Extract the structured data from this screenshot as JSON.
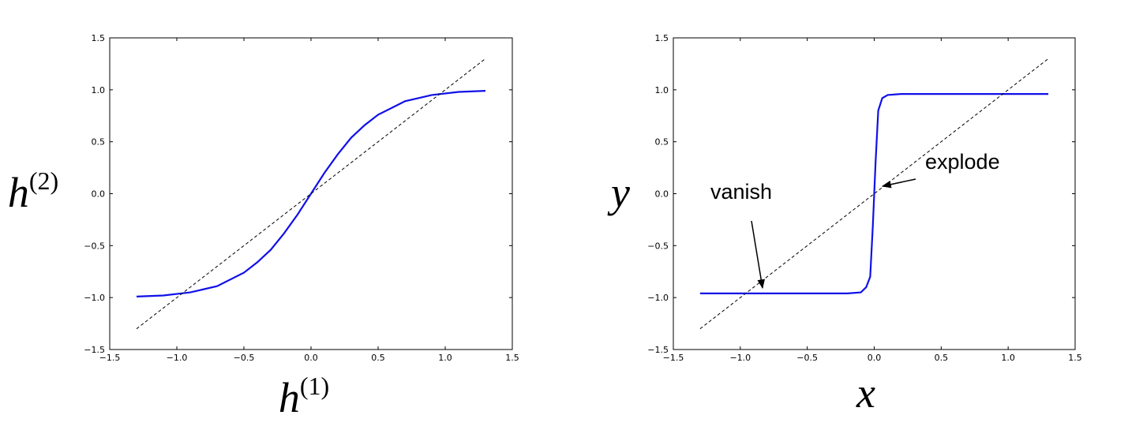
{
  "chart_data": [
    {
      "type": "line",
      "xlabel": [
        "h",
        "(1)"
      ],
      "ylabel": [
        "h",
        "(2)"
      ],
      "xlim": [
        -1.5,
        1.5
      ],
      "ylim": [
        -1.5,
        1.5
      ],
      "xticks": [
        {
          "value": -1.5,
          "label": "−1.5"
        },
        {
          "value": -1.0,
          "label": "−1.0"
        },
        {
          "value": -0.5,
          "label": "−0.5"
        },
        {
          "value": 0,
          "label": "0.0"
        },
        0.5,
        {
          "value": 1.0,
          "label": "1.0"
        },
        1.5
      ],
      "yticks": [
        {
          "value": -1.5,
          "label": "−1.5"
        },
        {
          "value": -1.0,
          "label": "−1.0"
        },
        {
          "value": -0.5,
          "label": "−0.5"
        },
        {
          "value": 0,
          "label": "0.0"
        },
        0.5,
        {
          "value": 1.0,
          "label": "1.0"
        },
        1.5
      ],
      "series": [
        {
          "color": "#1010e8",
          "style": "solid",
          "x": [
            -1.3,
            -1.1,
            -0.9,
            -0.7,
            -0.5,
            -0.4,
            -0.3,
            -0.2,
            -0.1,
            0,
            0.1,
            0.2,
            0.3,
            0.4,
            0.5,
            0.7,
            0.9,
            1.1,
            1.3
          ],
          "values": [
            -0.99,
            -0.98,
            -0.95,
            -0.89,
            -0.76,
            -0.66,
            -0.54,
            -0.38,
            -0.2,
            0,
            0.2,
            0.38,
            0.54,
            0.66,
            0.76,
            0.89,
            0.95,
            0.98,
            0.99
          ]
        },
        {
          "color": "#000000",
          "style": "dashed",
          "x": [
            -1.3,
            1.3
          ],
          "values": [
            -1.3,
            1.3
          ]
        }
      ]
    },
    {
      "type": "line",
      "xlabel": [
        "x"
      ],
      "ylabel": [
        "y"
      ],
      "xlim": [
        -1.5,
        1.5
      ],
      "ylim": [
        -1.5,
        1.5
      ],
      "xticks": [
        {
          "value": -1.5,
          "label": "−1.5"
        },
        {
          "value": -1.0,
          "label": "−1.0"
        },
        {
          "value": -0.5,
          "label": "−0.5"
        },
        {
          "value": 0,
          "label": "0.0"
        },
        0.5,
        {
          "value": 1.0,
          "label": "1.0"
        },
        1.5
      ],
      "yticks": [
        {
          "value": -1.5,
          "label": "−1.5"
        },
        {
          "value": -1.0,
          "label": "−1.0"
        },
        {
          "value": -0.5,
          "label": "−0.5"
        },
        {
          "value": 0,
          "label": "0.0"
        },
        0.5,
        {
          "value": 1.0,
          "label": "1.0"
        },
        1.5
      ],
      "series": [
        {
          "color": "#1010e8",
          "style": "solid",
          "x": [
            -1.3,
            -1.0,
            -0.5,
            -0.2,
            -0.1,
            -0.06,
            -0.03,
            -0.01,
            0,
            0.01,
            0.03,
            0.06,
            0.1,
            0.2,
            0.5,
            1.0,
            1.3
          ],
          "values": [
            -0.96,
            -0.96,
            -0.96,
            -0.96,
            -0.95,
            -0.9,
            -0.8,
            -0.3,
            0,
            0.3,
            0.8,
            0.92,
            0.95,
            0.96,
            0.96,
            0.96,
            0.96
          ]
        },
        {
          "color": "#000000",
          "style": "dashed",
          "x": [
            -1.3,
            1.3
          ],
          "values": [
            -1.3,
            1.3
          ]
        }
      ],
      "annotations": [
        {
          "text": "vanish"
        },
        {
          "text": "explode"
        }
      ]
    }
  ]
}
